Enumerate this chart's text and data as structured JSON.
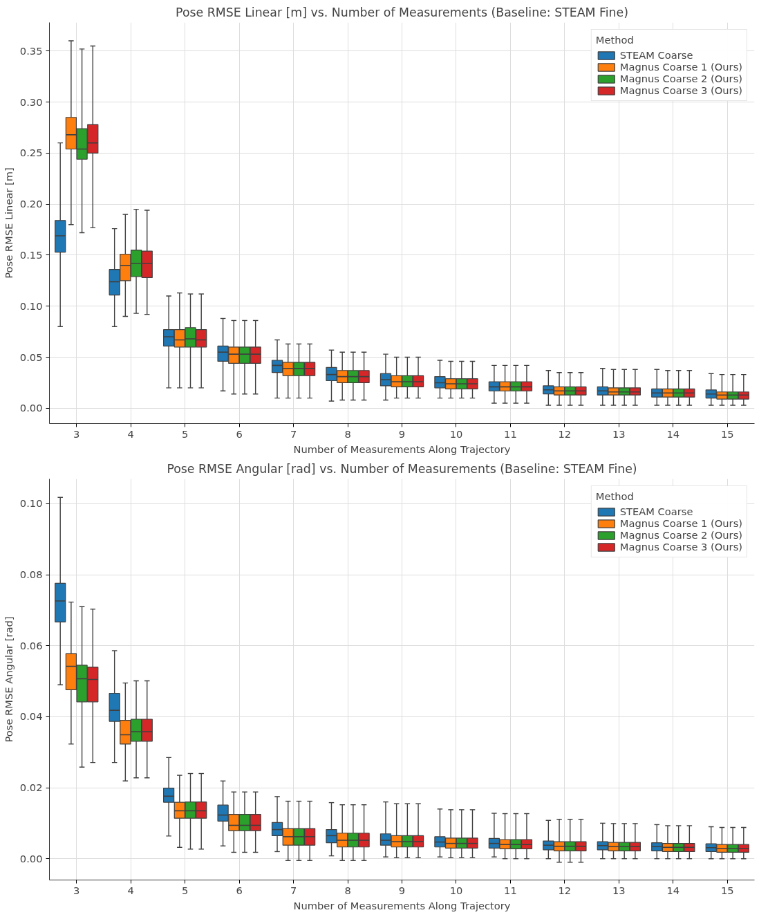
{
  "chart_data": [
    {
      "type": "box",
      "title": "Pose RMSE Linear [m] vs. Number of Measurements (Baseline: STEAM Fine)",
      "xlabel": "Number of Measurements Along Trajectory",
      "ylabel": "Pose RMSE Linear [m]",
      "legend_title": "Method",
      "legend": "top right",
      "grid": true,
      "categories": [
        "3",
        "4",
        "5",
        "6",
        "7",
        "8",
        "9",
        "10",
        "11",
        "12",
        "13",
        "14",
        "15"
      ],
      "ylim": [
        -0.015,
        0.378
      ],
      "yticks": [
        {
          "value": 0,
          "label": "0.00"
        },
        {
          "value": 0.05,
          "label": "0.05"
        },
        {
          "value": 0.1,
          "label": "0.10"
        },
        {
          "value": 0.15,
          "label": "0.15"
        },
        {
          "value": 0.2,
          "label": "0.20"
        },
        {
          "value": 0.25,
          "label": "0.25"
        },
        {
          "value": 0.3,
          "label": "0.30"
        },
        {
          "value": 0.35,
          "label": "0.35"
        }
      ],
      "series": [
        {
          "name": "STEAM Coarse",
          "color": "#1f77b4",
          "boxes": [
            {
              "low": 0.08,
              "q1": 0.153,
              "median": 0.169,
              "q3": 0.184,
              "high": 0.26
            },
            {
              "low": 0.08,
              "q1": 0.111,
              "median": 0.124,
              "q3": 0.136,
              "high": 0.176
            },
            {
              "low": 0.02,
              "q1": 0.061,
              "median": 0.07,
              "q3": 0.077,
              "high": 0.11
            },
            {
              "low": 0.017,
              "q1": 0.046,
              "median": 0.055,
              "q3": 0.061,
              "high": 0.088
            },
            {
              "low": 0.01,
              "q1": 0.035,
              "median": 0.042,
              "q3": 0.047,
              "high": 0.067
            },
            {
              "low": 0.007,
              "q1": 0.027,
              "median": 0.033,
              "q3": 0.04,
              "high": 0.057
            },
            {
              "low": 0.008,
              "q1": 0.022,
              "median": 0.028,
              "q3": 0.034,
              "high": 0.053
            },
            {
              "low": 0.01,
              "q1": 0.02,
              "median": 0.025,
              "q3": 0.031,
              "high": 0.047
            },
            {
              "low": 0.005,
              "q1": 0.017,
              "median": 0.021,
              "q3": 0.026,
              "high": 0.042
            },
            {
              "low": 0.003,
              "q1": 0.014,
              "median": 0.018,
              "q3": 0.022,
              "high": 0.037
            },
            {
              "low": 0.003,
              "q1": 0.013,
              "median": 0.017,
              "q3": 0.021,
              "high": 0.039
            },
            {
              "low": 0.003,
              "q1": 0.011,
              "median": 0.015,
              "q3": 0.019,
              "high": 0.038
            },
            {
              "low": 0.003,
              "q1": 0.01,
              "median": 0.014,
              "q3": 0.018,
              "high": 0.034
            }
          ]
        },
        {
          "name": "Magnus Coarse 1 (Ours)",
          "color": "#ff7f0e",
          "boxes": [
            {
              "low": 0.18,
              "q1": 0.254,
              "median": 0.268,
              "q3": 0.285,
              "high": 0.36
            },
            {
              "low": 0.09,
              "q1": 0.125,
              "median": 0.14,
              "q3": 0.151,
              "high": 0.19
            },
            {
              "low": 0.02,
              "q1": 0.06,
              "median": 0.067,
              "q3": 0.077,
              "high": 0.113
            },
            {
              "low": 0.014,
              "q1": 0.044,
              "median": 0.053,
              "q3": 0.06,
              "high": 0.086
            },
            {
              "low": 0.01,
              "q1": 0.032,
              "median": 0.039,
              "q3": 0.045,
              "high": 0.063
            },
            {
              "low": 0.008,
              "q1": 0.025,
              "median": 0.031,
              "q3": 0.037,
              "high": 0.055
            },
            {
              "low": 0.01,
              "q1": 0.021,
              "median": 0.026,
              "q3": 0.032,
              "high": 0.05
            },
            {
              "low": 0.01,
              "q1": 0.019,
              "median": 0.024,
              "q3": 0.029,
              "high": 0.046
            },
            {
              "low": 0.005,
              "q1": 0.017,
              "median": 0.021,
              "q3": 0.026,
              "high": 0.042
            },
            {
              "low": 0.003,
              "q1": 0.013,
              "median": 0.017,
              "q3": 0.021,
              "high": 0.035
            },
            {
              "low": 0.003,
              "q1": 0.013,
              "median": 0.016,
              "q3": 0.02,
              "high": 0.038
            },
            {
              "low": 0.003,
              "q1": 0.011,
              "median": 0.015,
              "q3": 0.019,
              "high": 0.037
            },
            {
              "low": 0.003,
              "q1": 0.009,
              "median": 0.013,
              "q3": 0.016,
              "high": 0.033
            }
          ]
        },
        {
          "name": "Magnus Coarse 2 (Ours)",
          "color": "#2ca02c",
          "boxes": [
            {
              "low": 0.172,
              "q1": 0.244,
              "median": 0.254,
              "q3": 0.274,
              "high": 0.352
            },
            {
              "low": 0.093,
              "q1": 0.129,
              "median": 0.142,
              "q3": 0.155,
              "high": 0.195
            },
            {
              "low": 0.02,
              "q1": 0.06,
              "median": 0.068,
              "q3": 0.079,
              "high": 0.112
            },
            {
              "low": 0.014,
              "q1": 0.044,
              "median": 0.053,
              "q3": 0.06,
              "high": 0.086
            },
            {
              "low": 0.01,
              "q1": 0.032,
              "median": 0.039,
              "q3": 0.045,
              "high": 0.063
            },
            {
              "low": 0.008,
              "q1": 0.025,
              "median": 0.031,
              "q3": 0.037,
              "high": 0.055
            },
            {
              "low": 0.01,
              "q1": 0.021,
              "median": 0.026,
              "q3": 0.032,
              "high": 0.05
            },
            {
              "low": 0.01,
              "q1": 0.019,
              "median": 0.024,
              "q3": 0.029,
              "high": 0.046
            },
            {
              "low": 0.005,
              "q1": 0.017,
              "median": 0.021,
              "q3": 0.026,
              "high": 0.042
            },
            {
              "low": 0.003,
              "q1": 0.013,
              "median": 0.017,
              "q3": 0.021,
              "high": 0.035
            },
            {
              "low": 0.003,
              "q1": 0.013,
              "median": 0.016,
              "q3": 0.02,
              "high": 0.038
            },
            {
              "low": 0.003,
              "q1": 0.011,
              "median": 0.015,
              "q3": 0.019,
              "high": 0.037
            },
            {
              "low": 0.003,
              "q1": 0.009,
              "median": 0.013,
              "q3": 0.016,
              "high": 0.033
            }
          ]
        },
        {
          "name": "Magnus Coarse 3 (Ours)",
          "color": "#d62728",
          "boxes": [
            {
              "low": 0.177,
              "q1": 0.25,
              "median": 0.26,
              "q3": 0.278,
              "high": 0.355
            },
            {
              "low": 0.092,
              "q1": 0.128,
              "median": 0.142,
              "q3": 0.154,
              "high": 0.194
            },
            {
              "low": 0.02,
              "q1": 0.06,
              "median": 0.067,
              "q3": 0.077,
              "high": 0.112
            },
            {
              "low": 0.014,
              "q1": 0.044,
              "median": 0.053,
              "q3": 0.06,
              "high": 0.086
            },
            {
              "low": 0.01,
              "q1": 0.032,
              "median": 0.039,
              "q3": 0.045,
              "high": 0.063
            },
            {
              "low": 0.008,
              "q1": 0.025,
              "median": 0.031,
              "q3": 0.037,
              "high": 0.055
            },
            {
              "low": 0.01,
              "q1": 0.021,
              "median": 0.026,
              "q3": 0.032,
              "high": 0.05
            },
            {
              "low": 0.01,
              "q1": 0.019,
              "median": 0.024,
              "q3": 0.029,
              "high": 0.046
            },
            {
              "low": 0.005,
              "q1": 0.017,
              "median": 0.021,
              "q3": 0.026,
              "high": 0.042
            },
            {
              "low": 0.003,
              "q1": 0.013,
              "median": 0.017,
              "q3": 0.021,
              "high": 0.035
            },
            {
              "low": 0.003,
              "q1": 0.013,
              "median": 0.016,
              "q3": 0.02,
              "high": 0.038
            },
            {
              "low": 0.003,
              "q1": 0.011,
              "median": 0.015,
              "q3": 0.019,
              "high": 0.037
            },
            {
              "low": 0.003,
              "q1": 0.009,
              "median": 0.013,
              "q3": 0.016,
              "high": 0.033
            }
          ]
        }
      ]
    },
    {
      "type": "box",
      "title": "Pose RMSE Angular [rad] vs. Number of Measurements (Baseline: STEAM Fine)",
      "xlabel": "Number of Measurements Along Trajectory",
      "ylabel": "Pose RMSE Angular [rad]",
      "legend_title": "Method",
      "legend": "top right",
      "grid": true,
      "categories": [
        "3",
        "4",
        "5",
        "6",
        "7",
        "8",
        "9",
        "10",
        "11",
        "12",
        "13",
        "14",
        "15"
      ],
      "ylim": [
        -0.006,
        0.107
      ],
      "yticks": [
        {
          "value": 0,
          "label": "0.00"
        },
        {
          "value": 0.02,
          "label": "0.02"
        },
        {
          "value": 0.04,
          "label": "0.04"
        },
        {
          "value": 0.06,
          "label": "0.06"
        },
        {
          "value": 0.08,
          "label": "0.08"
        },
        {
          "value": 0.1,
          "label": "0.10"
        }
      ],
      "series": [
        {
          "name": "STEAM Coarse",
          "color": "#1f77b4",
          "boxes": [
            {
              "low": 0.049,
              "q1": 0.0667,
              "median": 0.0726,
              "q3": 0.0776,
              "high": 0.1018
            },
            {
              "low": 0.0271,
              "q1": 0.0387,
              "median": 0.0418,
              "q3": 0.0466,
              "high": 0.0586
            },
            {
              "low": 0.0064,
              "q1": 0.0159,
              "median": 0.0176,
              "q3": 0.0199,
              "high": 0.0285
            },
            {
              "low": 0.0036,
              "q1": 0.0106,
              "median": 0.0123,
              "q3": 0.0151,
              "high": 0.0219
            },
            {
              "low": 0.002,
              "q1": 0.0065,
              "median": 0.0082,
              "q3": 0.0102,
              "high": 0.0175
            },
            {
              "low": 0.0008,
              "q1": 0.0045,
              "median": 0.0065,
              "q3": 0.0082,
              "high": 0.0158
            },
            {
              "low": 0.0005,
              "q1": 0.0038,
              "median": 0.0052,
              "q3": 0.007,
              "high": 0.016
            },
            {
              "low": 0.0005,
              "q1": 0.0033,
              "median": 0.0047,
              "q3": 0.0062,
              "high": 0.014
            },
            {
              "low": 0.0005,
              "q1": 0.003,
              "median": 0.0043,
              "q3": 0.0057,
              "high": 0.0128
            },
            {
              "low": 0.0,
              "q1": 0.0025,
              "median": 0.0038,
              "q3": 0.005,
              "high": 0.0108
            },
            {
              "low": 0.0,
              "q1": 0.0025,
              "median": 0.0037,
              "q3": 0.0048,
              "high": 0.01
            },
            {
              "low": 0.0,
              "q1": 0.0022,
              "median": 0.0034,
              "q3": 0.0045,
              "high": 0.0096
            },
            {
              "low": 0.0,
              "q1": 0.002,
              "median": 0.0031,
              "q3": 0.0042,
              "high": 0.009
            }
          ]
        },
        {
          "name": "Magnus Coarse 1 (Ours)",
          "color": "#ff7f0e",
          "boxes": [
            {
              "low": 0.0323,
              "q1": 0.0476,
              "median": 0.0542,
              "q3": 0.0578,
              "high": 0.0723
            },
            {
              "low": 0.0219,
              "q1": 0.0323,
              "median": 0.0349,
              "q3": 0.039,
              "high": 0.0495
            },
            {
              "low": 0.0032,
              "q1": 0.0114,
              "median": 0.0135,
              "q3": 0.0159,
              "high": 0.0235
            },
            {
              "low": 0.0018,
              "q1": 0.0079,
              "median": 0.0094,
              "q3": 0.0125,
              "high": 0.0188
            },
            {
              "low": -0.0005,
              "q1": 0.0038,
              "median": 0.0062,
              "q3": 0.0085,
              "high": 0.0162
            },
            {
              "low": -0.0005,
              "q1": 0.0033,
              "median": 0.0052,
              "q3": 0.0072,
              "high": 0.0152
            },
            {
              "low": 0.0003,
              "q1": 0.0033,
              "median": 0.0048,
              "q3": 0.0065,
              "high": 0.0155
            },
            {
              "low": 0.0003,
              "q1": 0.003,
              "median": 0.0043,
              "q3": 0.0058,
              "high": 0.0138
            },
            {
              "low": 0.0,
              "q1": 0.0028,
              "median": 0.004,
              "q3": 0.0054,
              "high": 0.0127
            },
            {
              "low": -0.001,
              "q1": 0.0022,
              "median": 0.0035,
              "q3": 0.0048,
              "high": 0.0111
            },
            {
              "low": 0.0,
              "q1": 0.0022,
              "median": 0.0034,
              "q3": 0.0046,
              "high": 0.0099
            },
            {
              "low": 0.0,
              "q1": 0.002,
              "median": 0.0032,
              "q3": 0.0043,
              "high": 0.0093
            },
            {
              "low": 0.0,
              "q1": 0.0018,
              "median": 0.0029,
              "q3": 0.004,
              "high": 0.0088
            }
          ]
        },
        {
          "name": "Magnus Coarse 2 (Ours)",
          "color": "#2ca02c",
          "boxes": [
            {
              "low": 0.0258,
              "q1": 0.0442,
              "median": 0.0507,
              "q3": 0.0545,
              "high": 0.071
            },
            {
              "low": 0.0228,
              "q1": 0.0331,
              "median": 0.0358,
              "q3": 0.0393,
              "high": 0.0501
            },
            {
              "low": 0.0027,
              "q1": 0.0114,
              "median": 0.0135,
              "q3": 0.016,
              "high": 0.024
            },
            {
              "low": 0.0018,
              "q1": 0.0079,
              "median": 0.0094,
              "q3": 0.0125,
              "high": 0.0188
            },
            {
              "low": -0.0005,
              "q1": 0.0038,
              "median": 0.0062,
              "q3": 0.0085,
              "high": 0.0162
            },
            {
              "low": -0.0005,
              "q1": 0.0033,
              "median": 0.0052,
              "q3": 0.0072,
              "high": 0.0152
            },
            {
              "low": 0.0003,
              "q1": 0.0033,
              "median": 0.0048,
              "q3": 0.0065,
              "high": 0.0155
            },
            {
              "low": 0.0003,
              "q1": 0.003,
              "median": 0.0043,
              "q3": 0.0058,
              "high": 0.0138
            },
            {
              "low": 0.0,
              "q1": 0.0028,
              "median": 0.004,
              "q3": 0.0054,
              "high": 0.0127
            },
            {
              "low": -0.001,
              "q1": 0.0022,
              "median": 0.0035,
              "q3": 0.0048,
              "high": 0.0111
            },
            {
              "low": 0.0,
              "q1": 0.0022,
              "median": 0.0034,
              "q3": 0.0046,
              "high": 0.0099
            },
            {
              "low": 0.0,
              "q1": 0.002,
              "median": 0.0032,
              "q3": 0.0043,
              "high": 0.0093
            },
            {
              "low": 0.0,
              "q1": 0.0018,
              "median": 0.0029,
              "q3": 0.004,
              "high": 0.0088
            }
          ]
        },
        {
          "name": "Magnus Coarse 3 (Ours)",
          "color": "#d62728",
          "boxes": [
            {
              "low": 0.0271,
              "q1": 0.0442,
              "median": 0.0505,
              "q3": 0.054,
              "high": 0.0703
            },
            {
              "low": 0.0228,
              "q1": 0.0331,
              "median": 0.0358,
              "q3": 0.0393,
              "high": 0.0501
            },
            {
              "low": 0.0027,
              "q1": 0.0114,
              "median": 0.0135,
              "q3": 0.016,
              "high": 0.024
            },
            {
              "low": 0.0018,
              "q1": 0.0079,
              "median": 0.0094,
              "q3": 0.0125,
              "high": 0.0188
            },
            {
              "low": -0.0005,
              "q1": 0.0038,
              "median": 0.0062,
              "q3": 0.0085,
              "high": 0.0162
            },
            {
              "low": -0.0005,
              "q1": 0.0033,
              "median": 0.0052,
              "q3": 0.0072,
              "high": 0.0152
            },
            {
              "low": 0.0003,
              "q1": 0.0033,
              "median": 0.0048,
              "q3": 0.0065,
              "high": 0.0155
            },
            {
              "low": 0.0003,
              "q1": 0.003,
              "median": 0.0043,
              "q3": 0.0058,
              "high": 0.0138
            },
            {
              "low": 0.0,
              "q1": 0.0028,
              "median": 0.004,
              "q3": 0.0054,
              "high": 0.0127
            },
            {
              "low": -0.001,
              "q1": 0.0022,
              "median": 0.0035,
              "q3": 0.0048,
              "high": 0.0111
            },
            {
              "low": 0.0,
              "q1": 0.0022,
              "median": 0.0034,
              "q3": 0.0046,
              "high": 0.0099
            },
            {
              "low": 0.0,
              "q1": 0.002,
              "median": 0.0032,
              "q3": 0.0043,
              "high": 0.0093
            },
            {
              "low": 0.0,
              "q1": 0.0018,
              "median": 0.0029,
              "q3": 0.004,
              "high": 0.0088
            }
          ]
        }
      ]
    }
  ]
}
